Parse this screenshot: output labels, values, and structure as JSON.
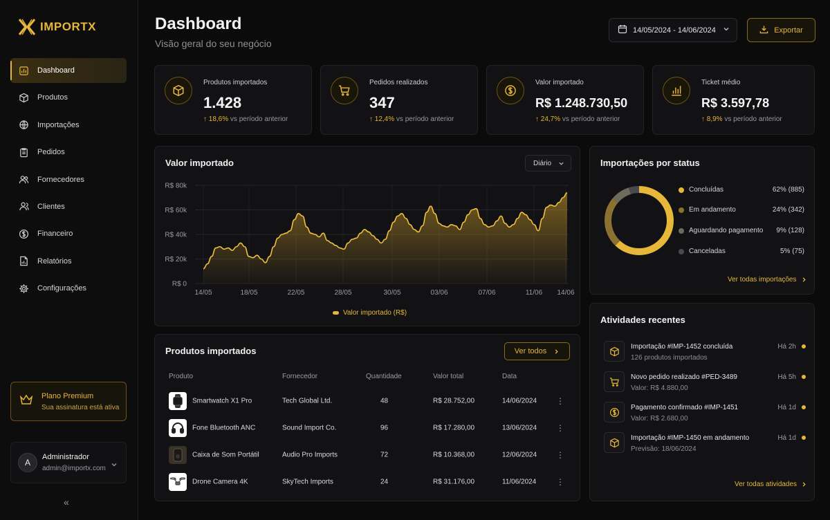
{
  "brand": {
    "name": "IMPORTX"
  },
  "sidebar": {
    "items": [
      {
        "label": "Dashboard",
        "icon": "dashboard-icon",
        "active": true
      },
      {
        "label": "Produtos",
        "icon": "box-icon"
      },
      {
        "label": "Importações",
        "icon": "globe-icon"
      },
      {
        "label": "Pedidos",
        "icon": "clipboard-icon"
      },
      {
        "label": "Fornecedores",
        "icon": "users-icon"
      },
      {
        "label": "Clientes",
        "icon": "user-group-icon"
      },
      {
        "label": "Financeiro",
        "icon": "dollar-circle-icon"
      },
      {
        "label": "Relatórios",
        "icon": "report-icon"
      },
      {
        "label": "Configurações",
        "icon": "gear-icon"
      }
    ],
    "premium": {
      "title": "Plano Premium",
      "subtitle": "Sua assinatura está ativa"
    },
    "user": {
      "initial": "A",
      "name": "Administrador",
      "email": "admin@importx.com"
    }
  },
  "header": {
    "title": "Dashboard",
    "subtitle": "Visão geral do seu negócio",
    "date_range": "14/05/2024 - 14/06/2024",
    "export_label": "Exportar"
  },
  "stats": [
    {
      "label": "Produtos importados",
      "value": "1.428",
      "delta": "18,6%",
      "delta_text": "vs período anterior",
      "icon": "box-icon"
    },
    {
      "label": "Pedidos realizados",
      "value": "347",
      "delta": "12,4%",
      "delta_text": "vs período anterior",
      "icon": "cart-icon"
    },
    {
      "label": "Valor importado",
      "value": "R$ 1.248.730,50",
      "delta": "24,7%",
      "delta_text": "vs período anterior",
      "icon": "dollar-circle-icon"
    },
    {
      "label": "Ticket médio",
      "value": "R$ 3.597,78",
      "delta": "8,9%",
      "delta_text": "vs período anterior",
      "icon": "bar-chart-icon"
    }
  ],
  "value_chart": {
    "title": "Valor importado",
    "period": "Diário",
    "legend": "Valor importado (R$)"
  },
  "chart_data": {
    "type": "area",
    "yticks": [
      "R$ 80k",
      "R$ 60k",
      "R$ 40k",
      "R$ 20k",
      "R$ 0"
    ],
    "xticks": [
      "14/05",
      "18/05",
      "22/05",
      "28/05",
      "30/05",
      "03/06",
      "07/06",
      "11/06",
      "14/06"
    ],
    "ylim": [
      0,
      80000
    ],
    "series": [
      {
        "name": "Valor importado (R$)",
        "values": [
          12000,
          16000,
          22000,
          29000,
          30000,
          28000,
          29000,
          27000,
          30000,
          33000,
          30000,
          22000,
          21000,
          23000,
          20000,
          17000,
          22000,
          30000,
          37000,
          40000,
          41000,
          43000,
          52000,
          57000,
          55000,
          46000,
          41000,
          40000,
          38000,
          41000,
          35000,
          33000,
          31000,
          29000,
          28000,
          33000,
          36000,
          37000,
          41000,
          44000,
          42000,
          39000,
          36000,
          33000,
          36000,
          43000,
          50000,
          55000,
          57000,
          53000,
          48000,
          44000,
          42000,
          47000,
          58000,
          63000,
          57000,
          49000,
          47000,
          46000,
          48000,
          47000,
          44000,
          50000,
          56000,
          60000,
          61000,
          53000,
          48000,
          46000,
          47000,
          51000,
          55000,
          49000,
          46000,
          48000,
          53000,
          58000,
          56000,
          52000,
          48000,
          43000,
          53000,
          62000,
          64000,
          63000,
          66000,
          70000,
          74000
        ]
      }
    ],
    "grid": true
  },
  "status_chart": {
    "title": "Importações por status",
    "items": [
      {
        "label": "Concluídas",
        "value": "62% (885)",
        "pct": 62,
        "color": "#e7b73a"
      },
      {
        "label": "Em andamento",
        "value": "24% (342)",
        "pct": 24,
        "color": "#8a7131"
      },
      {
        "label": "Aguardando pagamento",
        "value": "9% (128)",
        "pct": 9,
        "color": "#6e6a5e"
      },
      {
        "label": "Canceladas",
        "value": "5% (75)",
        "pct": 5,
        "color": "#4a4a4c"
      }
    ],
    "link": "Ver todas importações"
  },
  "products": {
    "title": "Produtos importados",
    "view_all": "Ver todos",
    "columns": [
      "Produto",
      "Fornecedor",
      "Quantidade",
      "Valor total",
      "Data"
    ],
    "rows": [
      {
        "product": "Smartwatch X1 Pro",
        "supplier": "Tech Global Ltd.",
        "qty": "48",
        "total": "R$ 28.752,00",
        "date": "14/06/2024",
        "icon": "smartwatch-icon"
      },
      {
        "product": "Fone Bluetooth ANC",
        "supplier": "Sound Import Co.",
        "qty": "96",
        "total": "R$ 17.280,00",
        "date": "13/06/2024",
        "icon": "headphones-icon"
      },
      {
        "product": "Caixa de Som Portátil",
        "supplier": "Audio Pro Imports",
        "qty": "72",
        "total": "R$ 10.368,00",
        "date": "12/06/2024",
        "icon": "speaker-icon"
      },
      {
        "product": "Drone Camera 4K",
        "supplier": "SkyTech Imports",
        "qty": "24",
        "total": "R$ 31.176,00",
        "date": "11/06/2024",
        "icon": "drone-icon"
      }
    ]
  },
  "activities": {
    "title": "Atividades recentes",
    "items": [
      {
        "title": "Importação #IMP-1452 concluída",
        "subtitle": "126 produtos importados",
        "time": "Há 2h",
        "icon": "box-icon"
      },
      {
        "title": "Novo pedido realizado #PED-3489",
        "subtitle": "Valor: R$ 4.880,00",
        "time": "Há 5h",
        "icon": "cart-icon"
      },
      {
        "title": "Pagamento confirmado #IMP-1451",
        "subtitle": "Valor: R$ 2.680,00",
        "time": "Há 1d",
        "icon": "dollar-circle-icon"
      },
      {
        "title": "Importação #IMP-1450 em andamento",
        "subtitle": "Previsão: 18/06/2024",
        "time": "Há 1d",
        "icon": "box-icon"
      }
    ],
    "link": "Ver todas atividades"
  }
}
